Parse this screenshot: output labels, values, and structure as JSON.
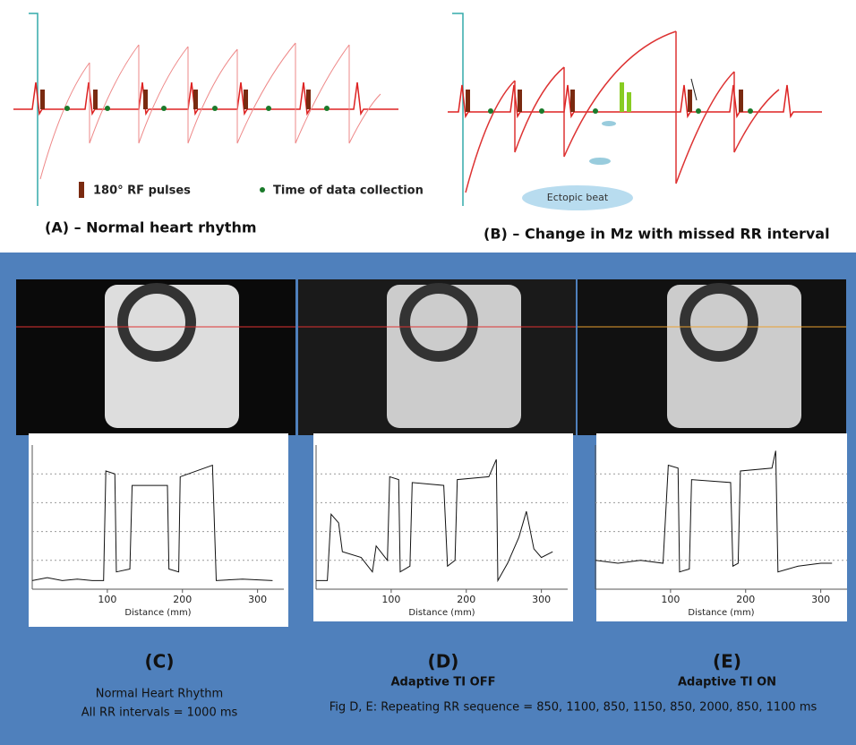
{
  "figure": {
    "panel_a": {
      "caption": "(A) – Normal heart rhythm",
      "legend": [
        "180° RF pulses",
        "Time of data collection"
      ]
    },
    "panel_b": {
      "caption": "(B) – Change in Mz with missed RR interval",
      "annotation": "Ectopic beat"
    },
    "profiles": [
      {
        "label": "(C)",
        "lines": [
          "Normal Heart Rhythm",
          "All RR intervals = 1000 ms"
        ],
        "x": [
          0,
          20,
          40,
          60,
          80,
          95,
          98,
          110,
          112,
          130,
          133,
          180,
          182,
          195,
          197,
          240,
          245,
          280,
          320
        ],
        "values": [
          0.3,
          0.4,
          0.3,
          0.35,
          0.3,
          0.3,
          4.1,
          4.0,
          0.6,
          0.7,
          3.6,
          3.6,
          0.7,
          0.6,
          3.9,
          4.3,
          0.3,
          0.35,
          0.3
        ],
        "xlim": [
          0,
          335
        ],
        "ylim": [
          0,
          5
        ],
        "xticks": [
          100,
          200,
          300
        ],
        "yticks": [
          1,
          2,
          3,
          4
        ],
        "xlabel": "Distance (mm)"
      },
      {
        "label": "(D)",
        "lines": [
          "Adaptive TI OFF"
        ],
        "x": [
          0,
          15,
          20,
          30,
          35,
          60,
          75,
          80,
          95,
          98,
          110,
          112,
          125,
          128,
          170,
          175,
          185,
          188,
          230,
          240,
          242,
          255,
          270,
          280,
          290,
          300,
          315
        ],
        "values": [
          0.3,
          0.3,
          2.6,
          2.3,
          1.3,
          1.1,
          0.6,
          1.5,
          1.0,
          3.9,
          3.8,
          0.6,
          0.8,
          3.7,
          3.6,
          0.8,
          1.0,
          3.8,
          3.9,
          4.5,
          0.3,
          0.9,
          1.8,
          2.7,
          1.4,
          1.1,
          1.3
        ],
        "xlim": [
          0,
          335
        ],
        "ylim": [
          0,
          5
        ],
        "xticks": [
          100,
          200,
          300
        ],
        "yticks": [
          1,
          2,
          3,
          4
        ],
        "xlabel": "Distance (mm)"
      },
      {
        "label": "(E)",
        "lines": [
          "Adaptive TI ON"
        ],
        "x": [
          0,
          30,
          60,
          90,
          97,
          110,
          112,
          125,
          128,
          180,
          183,
          190,
          193,
          235,
          240,
          243,
          270,
          300,
          315
        ],
        "values": [
          1.0,
          0.9,
          1.0,
          0.9,
          4.3,
          4.2,
          0.6,
          0.7,
          3.8,
          3.7,
          0.8,
          0.9,
          4.1,
          4.2,
          4.8,
          0.6,
          0.8,
          0.9,
          0.9
        ],
        "xlim": [
          0,
          335
        ],
        "ylim": [
          0,
          5
        ],
        "xticks": [
          100,
          200,
          300
        ],
        "yticks": [
          1,
          2,
          3,
          4
        ],
        "xlabel": "Distance (mm)"
      }
    ],
    "footnote": "Fig D, E: Repeating RR sequence = 850, 1100, 850, 1150, 850, 2000, 850, 1100 ms"
  }
}
